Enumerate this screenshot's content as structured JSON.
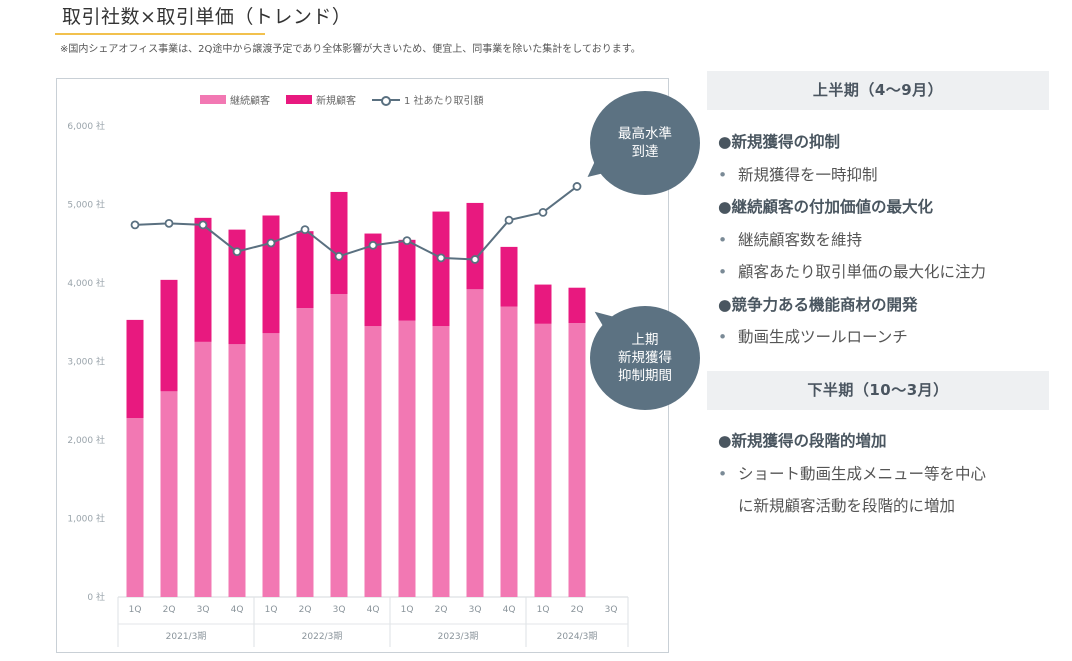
{
  "header": {
    "title": "取引社数×取引単価（トレンド）",
    "note": "※国内シェアオフィス事業は、2Q途中から譲渡予定であり全体影響が大きいため、便宜上、同事業を除いた集計をしております。"
  },
  "legend": {
    "continuing": "継続顧客",
    "new": "新規顧客",
    "line": "1 社あたり取引額"
  },
  "colors": {
    "continuing": "#f278b3",
    "new": "#e8197f",
    "line": "#5a7080",
    "bubble": "#5c7282"
  },
  "bubbles": {
    "top": "最高水準\n到達",
    "mid": "上期\n新規獲得\n抑制期間"
  },
  "chart_data": {
    "type": "bar",
    "stacked": true,
    "categories": [
      "1Q",
      "2Q",
      "3Q",
      "4Q",
      "1Q",
      "2Q",
      "3Q",
      "4Q",
      "1Q",
      "2Q",
      "3Q",
      "4Q",
      "1Q",
      "2Q",
      "3Q"
    ],
    "groups": [
      {
        "label": "2021/3期",
        "count": 4
      },
      {
        "label": "2022/3期",
        "count": 4
      },
      {
        "label": "2023/3期",
        "count": 4
      },
      {
        "label": "2024/3期",
        "count": 3
      }
    ],
    "y_ticks": [
      "0 社",
      "1,000 社",
      "2,000 社",
      "3,000 社",
      "4,000 社",
      "5,000 社",
      "6,000 社"
    ],
    "ylim": [
      0,
      6000
    ],
    "series": [
      {
        "name": "継続顧客",
        "values": [
          2280,
          2620,
          3250,
          3220,
          3360,
          3680,
          3860,
          3450,
          3520,
          3450,
          3920,
          3700,
          3480,
          3490,
          null
        ]
      },
      {
        "name": "新規顧客",
        "values": [
          1250,
          1420,
          1580,
          1460,
          1500,
          980,
          1300,
          1180,
          1030,
          1460,
          1100,
          760,
          500,
          450,
          null
        ]
      }
    ],
    "line_series": {
      "name": "1 社あたり取引額",
      "values": [
        4740,
        4760,
        4740,
        4400,
        4510,
        4680,
        4340,
        4480,
        4540,
        4320,
        4300,
        4800,
        4900,
        5230,
        null
      ]
    },
    "grid": false,
    "legend_position": "top"
  },
  "panel": {
    "first_half": {
      "header": "上半期（4〜9月）",
      "items": [
        {
          "type": "heading",
          "text": "●新規獲得の抑制"
        },
        {
          "type": "bullet",
          "text": "新規獲得を一時抑制"
        },
        {
          "type": "heading",
          "text": "●継続顧客の付加価値の最大化"
        },
        {
          "type": "bullet",
          "text": "継続顧客数を維持"
        },
        {
          "type": "bullet",
          "text": "顧客あたり取引単価の最大化に注力"
        },
        {
          "type": "heading",
          "text": "●競争力ある機能商材の開発"
        },
        {
          "type": "bullet",
          "text": "動画生成ツールローンチ"
        }
      ]
    },
    "second_half": {
      "header": "下半期（10〜3月）",
      "items": [
        {
          "type": "heading",
          "text": "●新規獲得の段階的増加"
        },
        {
          "type": "bullet",
          "text": "ショート動画生成メニュー等を中心"
        },
        {
          "type": "cont",
          "text": "に新規顧客活動を段階的に増加"
        }
      ]
    }
  }
}
